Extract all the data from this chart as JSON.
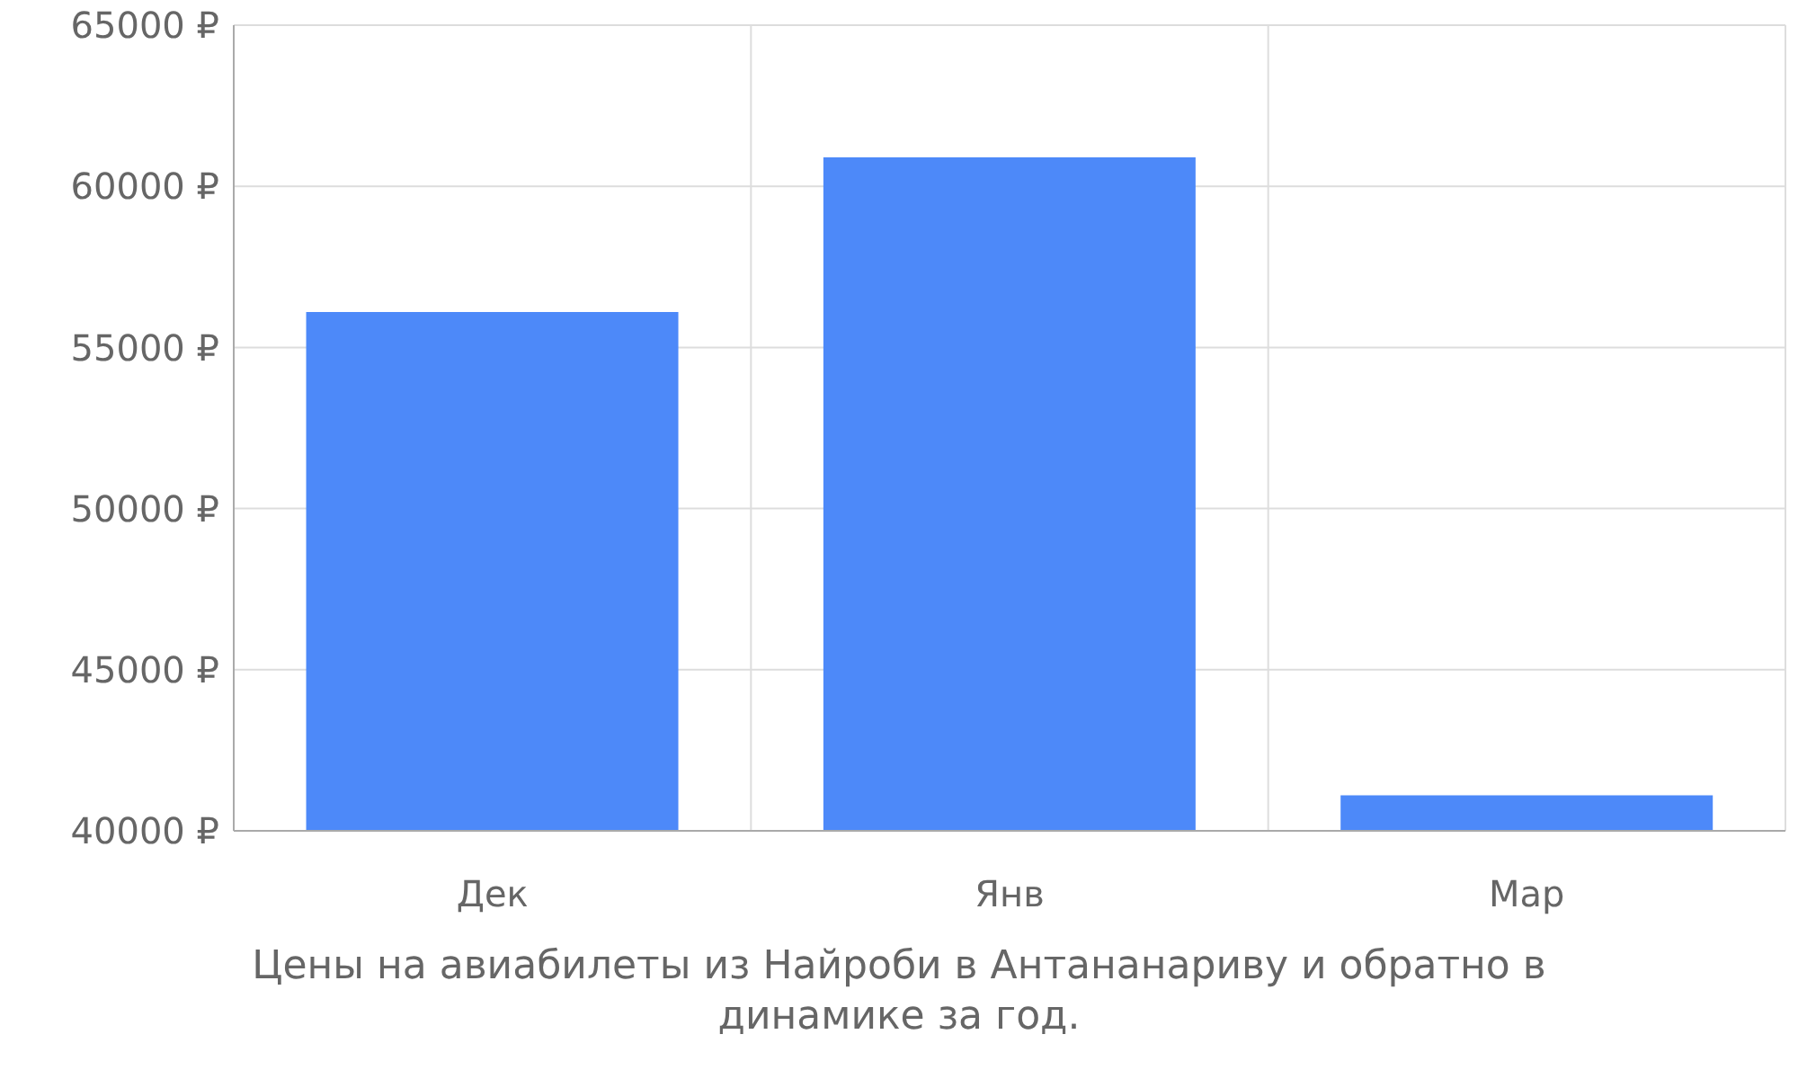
{
  "chart_data": {
    "type": "bar",
    "categories": [
      "Дек",
      "Янв",
      "Мар"
    ],
    "values": [
      56100,
      60900,
      41100
    ],
    "color": "#4d89f9",
    "ylim": [
      40000,
      65000
    ],
    "yticks": [
      {
        "value": 40000,
        "label": "40000 ₽"
      },
      {
        "value": 45000,
        "label": "45000 ₽"
      },
      {
        "value": 50000,
        "label": "50000 ₽"
      },
      {
        "value": 55000,
        "label": "55000 ₽"
      },
      {
        "value": 60000,
        "label": "60000 ₽"
      },
      {
        "value": 65000,
        "label": "65000 ₽"
      }
    ],
    "grid": true,
    "annotations": [
      "Цены на авиабилеты из Найроби в Антананариву и обратно в динамике за год."
    ]
  }
}
